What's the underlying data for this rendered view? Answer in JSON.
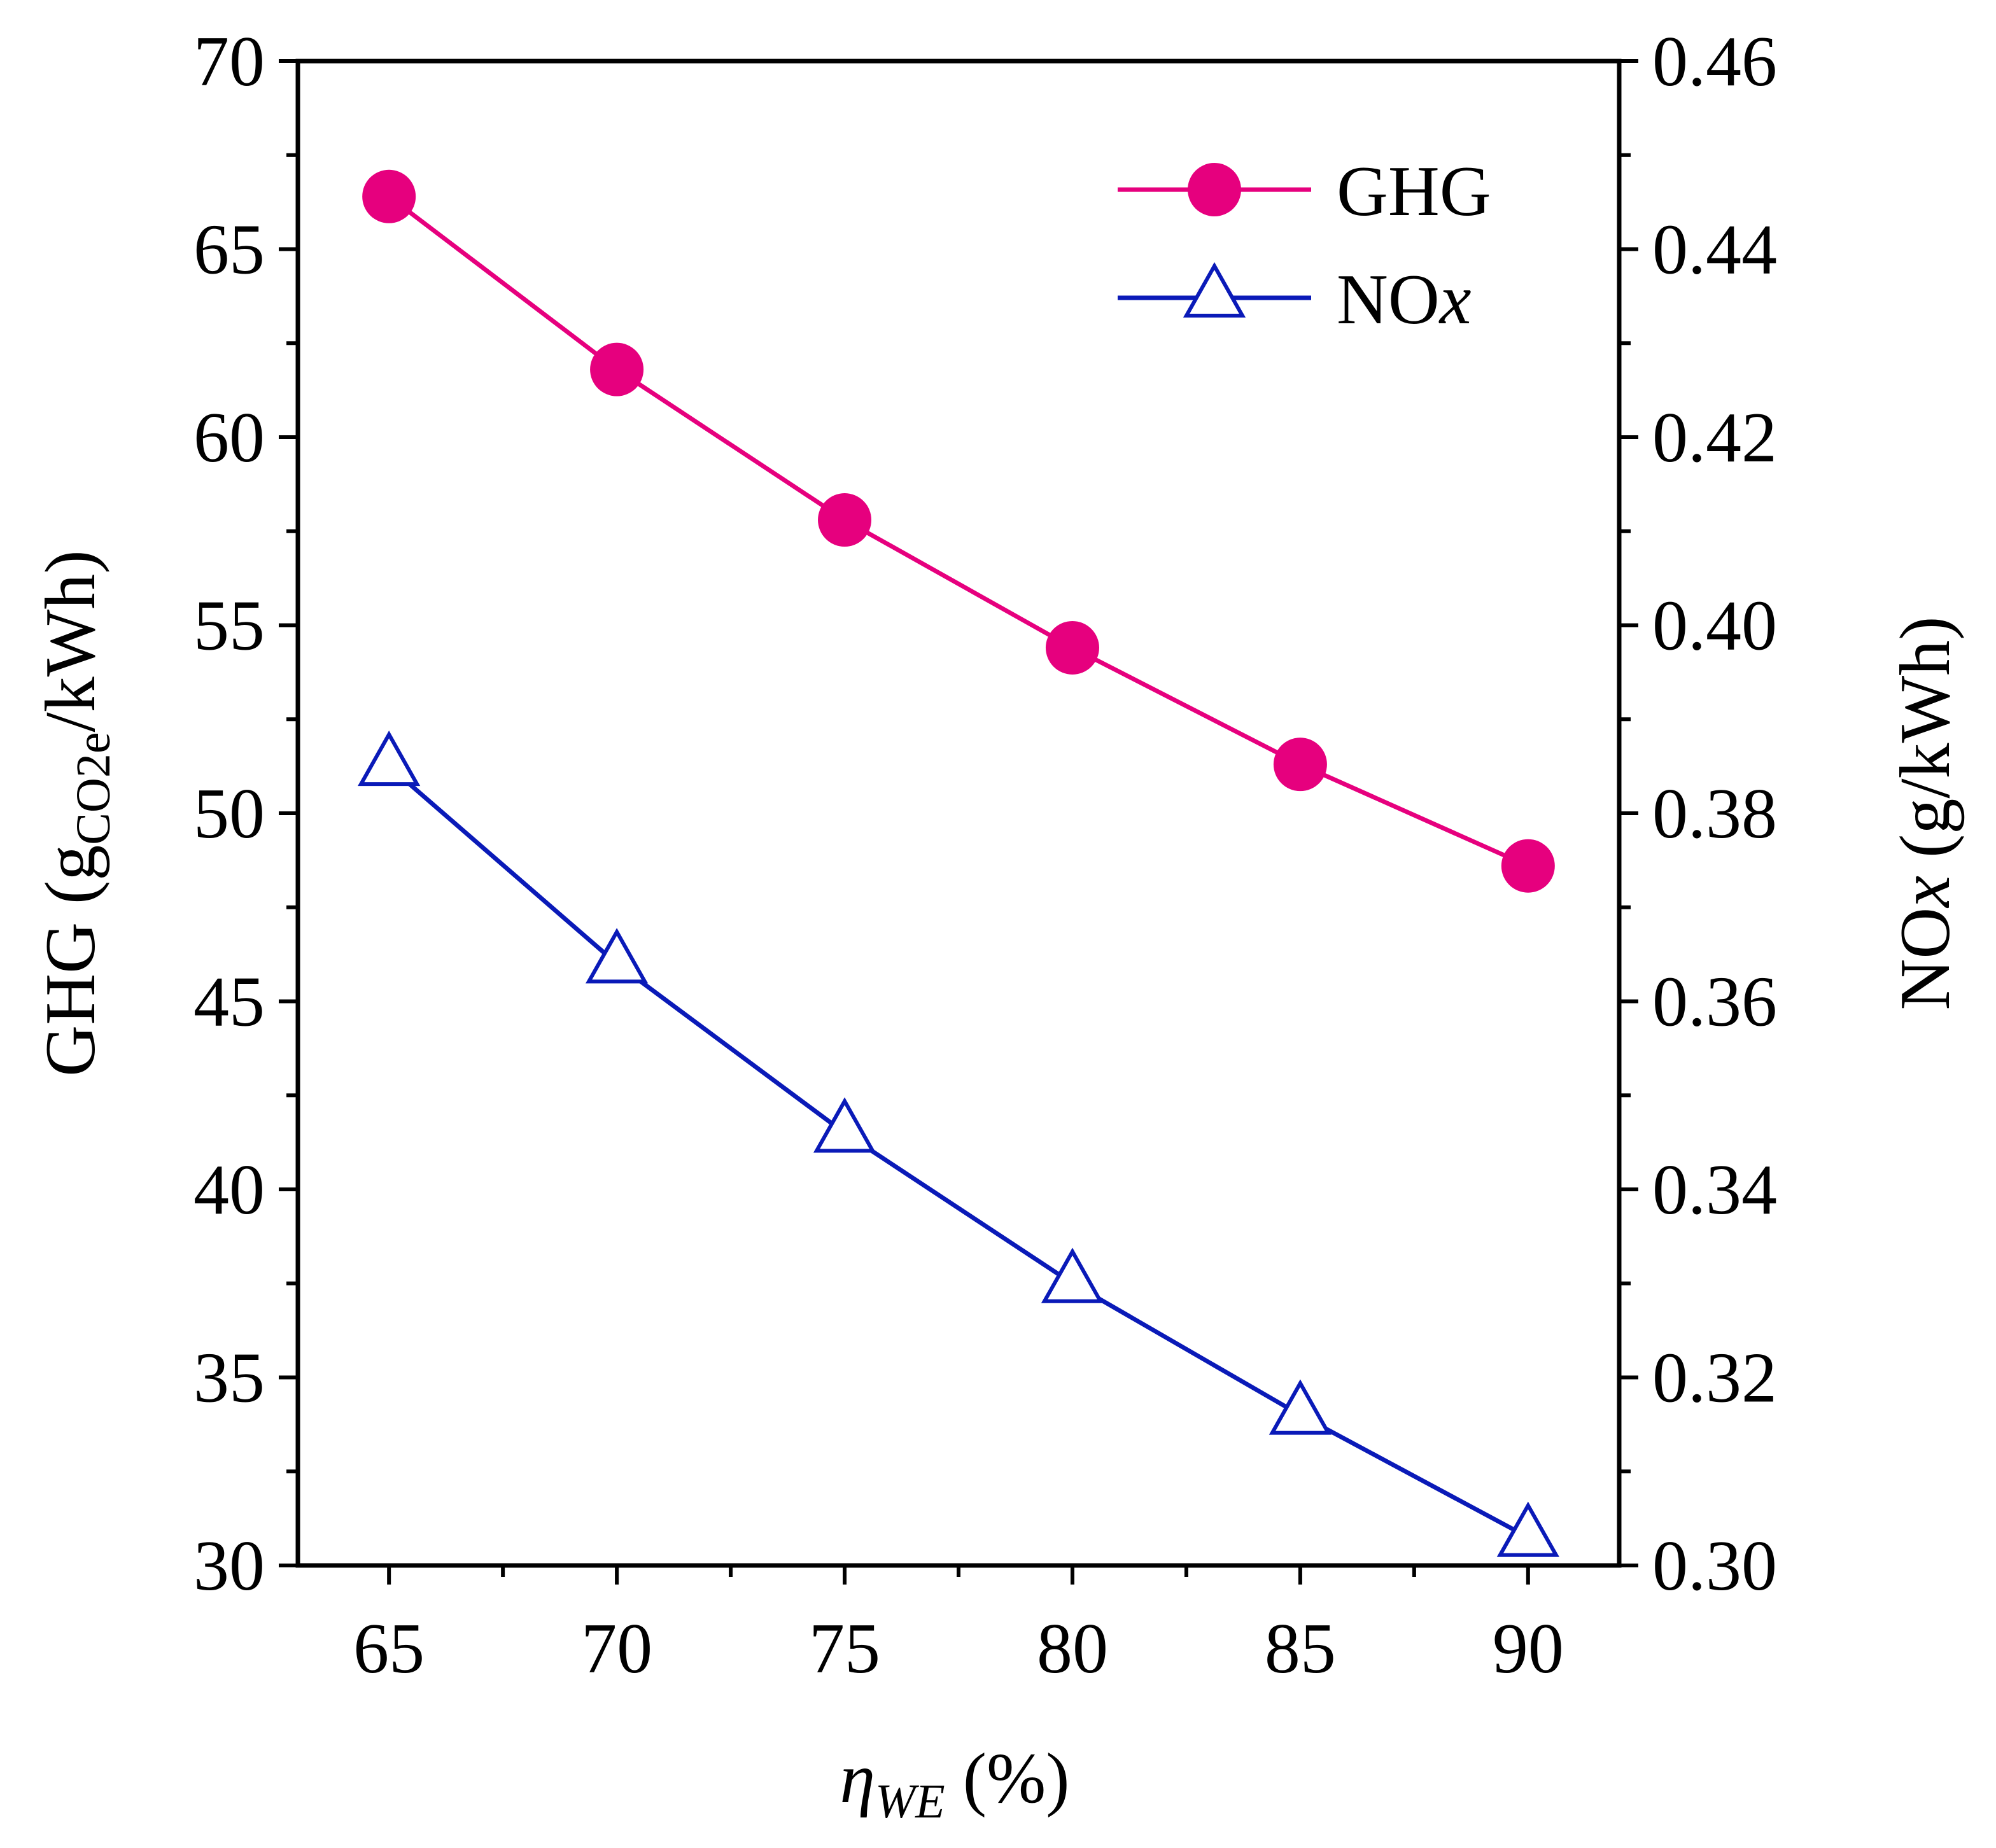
{
  "chart_data": {
    "type": "line",
    "x": [
      65,
      70,
      75,
      80,
      85,
      90
    ],
    "xlim": [
      63,
      92
    ],
    "x_ticks": [
      65,
      70,
      75,
      80,
      85,
      90
    ],
    "x_tick_labels": [
      "65",
      "70",
      "75",
      "80",
      "85",
      "90"
    ],
    "xlabel": {
      "symbol": "η",
      "subscript": "WE",
      "unit": " (%)"
    },
    "y_left": {
      "lim": [
        30,
        70
      ],
      "ticks": [
        30,
        35,
        40,
        45,
        50,
        55,
        60,
        65,
        70
      ],
      "tick_labels": [
        "30",
        "35",
        "40",
        "45",
        "50",
        "55",
        "60",
        "65",
        "70"
      ],
      "label": {
        "prefix": "GHG (g",
        "subscript": "CO2e",
        "suffix": "/kWh)"
      }
    },
    "y_right": {
      "lim": [
        0.3,
        0.46
      ],
      "ticks": [
        0.3,
        0.32,
        0.34,
        0.36,
        0.38,
        0.4,
        0.42,
        0.44,
        0.46
      ],
      "tick_labels": [
        "0.30",
        "0.32",
        "0.34",
        "0.36",
        "0.38",
        "0.40",
        "0.42",
        "0.44",
        "0.46"
      ],
      "label": {
        "prefix": "NO",
        "italic": "x",
        "suffix": " (g/kWh)"
      }
    },
    "series": [
      {
        "name": "GHG",
        "axis": "left",
        "marker": "filled-circle",
        "color": "#e6007e",
        "values": [
          66.4,
          61.8,
          57.8,
          54.4,
          51.3,
          48.6
        ]
      },
      {
        "name": "NOx",
        "label_prefix": "NO",
        "label_italic": "x",
        "axis": "right",
        "marker": "open-triangle",
        "color": "#0a1ab8",
        "values": [
          0.385,
          0.364,
          0.346,
          0.33,
          0.316,
          0.303
        ]
      }
    ],
    "legend_position": "top-right",
    "grid": false
  }
}
